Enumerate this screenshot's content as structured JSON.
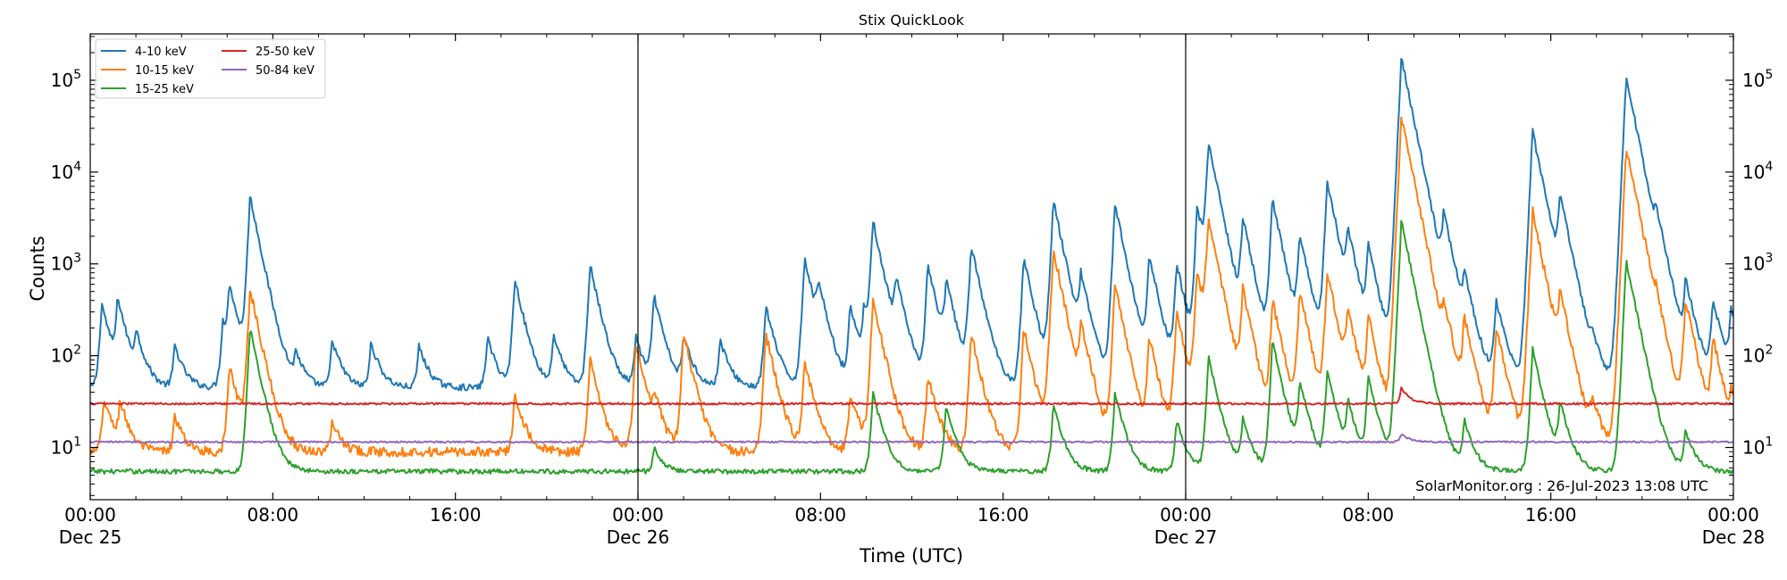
{
  "chart_data": {
    "type": "line",
    "title": "Stix QuickLook",
    "xlabel": "Time (UTC)",
    "ylabel": "Counts",
    "yscale": "log",
    "ylim": [
      2.7,
      320000
    ],
    "xlim": [
      "Dec 25 00:00",
      "Dec 28 00:00"
    ],
    "x_ticks": [
      {
        "hour": 0,
        "time": "00:00",
        "date": "Dec 25"
      },
      {
        "hour": 8,
        "time": "08:00",
        "date": ""
      },
      {
        "hour": 16,
        "time": "16:00",
        "date": ""
      },
      {
        "hour": 24,
        "time": "00:00",
        "date": "Dec 26"
      },
      {
        "hour": 32,
        "time": "08:00",
        "date": ""
      },
      {
        "hour": 40,
        "time": "16:00",
        "date": ""
      },
      {
        "hour": 48,
        "time": "00:00",
        "date": "Dec 27"
      },
      {
        "hour": 56,
        "time": "08:00",
        "date": ""
      },
      {
        "hour": 64,
        "time": "16:00",
        "date": ""
      },
      {
        "hour": 72,
        "time": "00:00",
        "date": "Dec 28"
      }
    ],
    "y_ticks": [
      {
        "value": 10,
        "base": "10",
        "exp": "1"
      },
      {
        "value": 100,
        "base": "10",
        "exp": "2"
      },
      {
        "value": 1000,
        "base": "10",
        "exp": "3"
      },
      {
        "value": 10000,
        "base": "10",
        "exp": "4"
      },
      {
        "value": 100000,
        "base": "10",
        "exp": "5"
      }
    ],
    "day_boundaries_hours": [
      24,
      48
    ],
    "legend_position": "top-left",
    "annotation": "SolarMonitor.org : 26-Jul-2023 13:08 UTC",
    "series": [
      {
        "name": "4-10 keV",
        "color": "#1f77b4",
        "baseline": 45,
        "noise": 0.08,
        "peaks": [
          {
            "t": 0.5,
            "v": 380
          },
          {
            "t": 1.2,
            "v": 400
          },
          {
            "t": 2.0,
            "v": 160
          },
          {
            "t": 3.7,
            "v": 130
          },
          {
            "t": 5.8,
            "v": 240
          },
          {
            "t": 6.1,
            "v": 550
          },
          {
            "t": 7.0,
            "v": 5500
          },
          {
            "t": 9.0,
            "v": 100
          },
          {
            "t": 10.6,
            "v": 150
          },
          {
            "t": 12.3,
            "v": 140
          },
          {
            "t": 14.4,
            "v": 130
          },
          {
            "t": 17.4,
            "v": 160
          },
          {
            "t": 18.6,
            "v": 700
          },
          {
            "t": 20.3,
            "v": 170
          },
          {
            "t": 21.9,
            "v": 1000
          },
          {
            "t": 23.9,
            "v": 160
          },
          {
            "t": 24.7,
            "v": 450
          },
          {
            "t": 26.0,
            "v": 160
          },
          {
            "t": 27.6,
            "v": 150
          },
          {
            "t": 29.6,
            "v": 350
          },
          {
            "t": 31.3,
            "v": 1200
          },
          {
            "t": 31.9,
            "v": 500
          },
          {
            "t": 33.3,
            "v": 350
          },
          {
            "t": 33.9,
            "v": 300
          },
          {
            "t": 34.3,
            "v": 2900
          },
          {
            "t": 35.3,
            "v": 600
          },
          {
            "t": 36.7,
            "v": 1000
          },
          {
            "t": 37.5,
            "v": 600
          },
          {
            "t": 38.6,
            "v": 1600
          },
          {
            "t": 40.9,
            "v": 1200
          },
          {
            "t": 42.2,
            "v": 5000
          },
          {
            "t": 43.4,
            "v": 700
          },
          {
            "t": 44.9,
            "v": 4500
          },
          {
            "t": 46.4,
            "v": 1200
          },
          {
            "t": 47.6,
            "v": 1000
          },
          {
            "t": 48.5,
            "v": 4000
          },
          {
            "t": 49.0,
            "v": 20000
          },
          {
            "t": 50.5,
            "v": 3000
          },
          {
            "t": 51.8,
            "v": 5000
          },
          {
            "t": 53.0,
            "v": 2000
          },
          {
            "t": 54.2,
            "v": 8000
          },
          {
            "t": 55.1,
            "v": 2000
          },
          {
            "t": 56.0,
            "v": 1500
          },
          {
            "t": 57.45,
            "v": 180000
          },
          {
            "t": 59.3,
            "v": 3000
          },
          {
            "t": 60.2,
            "v": 600
          },
          {
            "t": 61.6,
            "v": 400
          },
          {
            "t": 63.2,
            "v": 28000
          },
          {
            "t": 64.4,
            "v": 5000
          },
          {
            "t": 65.8,
            "v": 100
          },
          {
            "t": 67.3,
            "v": 110000
          },
          {
            "t": 68.6,
            "v": 2000
          },
          {
            "t": 69.9,
            "v": 600
          },
          {
            "t": 71.1,
            "v": 400
          },
          {
            "t": 71.9,
            "v": 300
          }
        ]
      },
      {
        "name": "10-15 keV",
        "color": "#ff7f0e",
        "baseline": 9,
        "noise": 0.12,
        "peaks": [
          {
            "t": 0.6,
            "v": 35
          },
          {
            "t": 1.3,
            "v": 30
          },
          {
            "t": 3.7,
            "v": 22
          },
          {
            "t": 6.1,
            "v": 80
          },
          {
            "t": 7.0,
            "v": 550
          },
          {
            "t": 10.6,
            "v": 20
          },
          {
            "t": 18.6,
            "v": 40
          },
          {
            "t": 21.9,
            "v": 90
          },
          {
            "t": 23.9,
            "v": 140
          },
          {
            "t": 24.7,
            "v": 30
          },
          {
            "t": 26.0,
            "v": 180
          },
          {
            "t": 29.6,
            "v": 180
          },
          {
            "t": 31.3,
            "v": 90
          },
          {
            "t": 33.3,
            "v": 40
          },
          {
            "t": 34.3,
            "v": 430
          },
          {
            "t": 36.7,
            "v": 60
          },
          {
            "t": 38.6,
            "v": 180
          },
          {
            "t": 40.9,
            "v": 200
          },
          {
            "t": 42.2,
            "v": 1500
          },
          {
            "t": 43.4,
            "v": 200
          },
          {
            "t": 44.9,
            "v": 600
          },
          {
            "t": 46.4,
            "v": 150
          },
          {
            "t": 47.6,
            "v": 300
          },
          {
            "t": 48.5,
            "v": 800
          },
          {
            "t": 49.0,
            "v": 3000
          },
          {
            "t": 50.5,
            "v": 500
          },
          {
            "t": 51.8,
            "v": 400
          },
          {
            "t": 53.0,
            "v": 500
          },
          {
            "t": 54.2,
            "v": 800
          },
          {
            "t": 55.1,
            "v": 300
          },
          {
            "t": 56.0,
            "v": 250
          },
          {
            "t": 57.45,
            "v": 40000
          },
          {
            "t": 59.3,
            "v": 250
          },
          {
            "t": 60.2,
            "v": 250
          },
          {
            "t": 61.6,
            "v": 200
          },
          {
            "t": 63.2,
            "v": 3800
          },
          {
            "t": 64.4,
            "v": 400
          },
          {
            "t": 65.8,
            "v": 30
          },
          {
            "t": 67.3,
            "v": 19000
          },
          {
            "t": 68.6,
            "v": 150
          },
          {
            "t": 69.9,
            "v": 400
          },
          {
            "t": 71.1,
            "v": 150
          },
          {
            "t": 71.9,
            "v": 30
          }
        ]
      },
      {
        "name": "15-25 keV",
        "color": "#2ca02c",
        "baseline": 5.5,
        "noise": 0.06,
        "peaks": [
          {
            "t": 7.0,
            "v": 200
          },
          {
            "t": 24.7,
            "v": 10
          },
          {
            "t": 34.3,
            "v": 40
          },
          {
            "t": 37.5,
            "v": 30
          },
          {
            "t": 42.2,
            "v": 30
          },
          {
            "t": 44.9,
            "v": 40
          },
          {
            "t": 47.6,
            "v": 20
          },
          {
            "t": 49.0,
            "v": 100
          },
          {
            "t": 50.5,
            "v": 20
          },
          {
            "t": 51.8,
            "v": 150
          },
          {
            "t": 53.0,
            "v": 50
          },
          {
            "t": 54.2,
            "v": 70
          },
          {
            "t": 55.1,
            "v": 30
          },
          {
            "t": 56.0,
            "v": 60
          },
          {
            "t": 57.45,
            "v": 3000
          },
          {
            "t": 60.2,
            "v": 20
          },
          {
            "t": 63.2,
            "v": 120
          },
          {
            "t": 64.4,
            "v": 30
          },
          {
            "t": 67.3,
            "v": 1100
          },
          {
            "t": 69.9,
            "v": 15
          }
        ]
      },
      {
        "name": "25-50 keV",
        "color": "#d62728",
        "baseline": 30,
        "noise": 0.025,
        "peaks": [
          {
            "t": 57.45,
            "v": 45
          }
        ]
      },
      {
        "name": "50-84 keV",
        "color": "#9467bd",
        "baseline": 11.5,
        "noise": 0.02,
        "peaks": [
          {
            "t": 57.45,
            "v": 14
          }
        ]
      }
    ]
  }
}
